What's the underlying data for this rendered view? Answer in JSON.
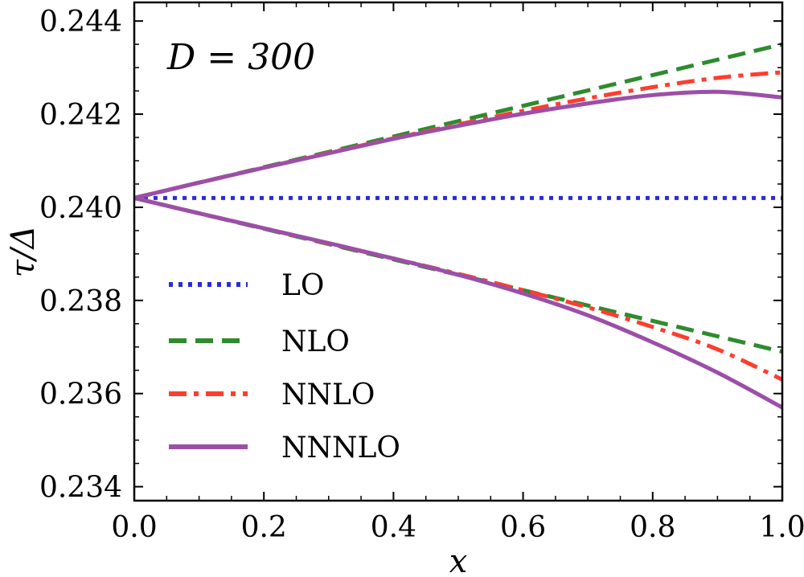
{
  "chart_data": {
    "type": "line",
    "annotation": "D = 300",
    "xlabel": "x",
    "ylabel": "τ/Δ",
    "xlim": [
      0,
      1
    ],
    "ylim": [
      0.2337,
      0.2444
    ],
    "xticks": [
      "0.0",
      "0.2",
      "0.4",
      "0.6",
      "0.8",
      "1.0"
    ],
    "yticks": [
      "0.234",
      "0.236",
      "0.238",
      "0.240",
      "0.242",
      "0.244"
    ],
    "legend_position": "center-left",
    "x": [
      0.0,
      0.1,
      0.2,
      0.3,
      0.4,
      0.5,
      0.6,
      0.7,
      0.8,
      0.9,
      1.0
    ],
    "series": [
      {
        "name": "LO",
        "color": "#2b2bd9",
        "style": "dotted",
        "branches": [
          [
            0.2402,
            0.2402,
            0.2402,
            0.2402,
            0.2402,
            0.2402,
            0.2402,
            0.2402,
            0.2402,
            0.2402,
            0.2402
          ]
        ]
      },
      {
        "name": "NLO",
        "color": "#2e8b2e",
        "style": "dashed",
        "branches": [
          [
            0.2402,
            0.24053,
            0.24086,
            0.24119,
            0.24152,
            0.24185,
            0.24218,
            0.24251,
            0.24284,
            0.24317,
            0.2435
          ],
          [
            0.2402,
            0.23987,
            0.23954,
            0.23921,
            0.23888,
            0.23855,
            0.23822,
            0.23789,
            0.23756,
            0.23723,
            0.2369
          ]
        ]
      },
      {
        "name": "NNLO",
        "color": "#ff3d2e",
        "style": "dashdot",
        "branches": [
          [
            0.2402,
            0.24053,
            0.24085,
            0.24117,
            0.24148,
            0.24178,
            0.24207,
            0.24234,
            0.24258,
            0.24278,
            0.2429
          ],
          [
            0.2402,
            0.23987,
            0.23955,
            0.23922,
            0.2389,
            0.23857,
            0.23822,
            0.23785,
            0.23743,
            0.23695,
            0.2363
          ]
        ]
      },
      {
        "name": "NNNLO",
        "color": "#9b4fa8",
        "style": "solid",
        "branches": [
          [
            0.2402,
            0.24053,
            0.24085,
            0.24116,
            0.24147,
            0.24175,
            0.24201,
            0.24223,
            0.24241,
            0.24248,
            0.24236
          ],
          [
            0.2402,
            0.23987,
            0.23955,
            0.23923,
            0.2389,
            0.23855,
            0.23815,
            0.23768,
            0.2371,
            0.23645,
            0.2357
          ]
        ]
      }
    ]
  }
}
